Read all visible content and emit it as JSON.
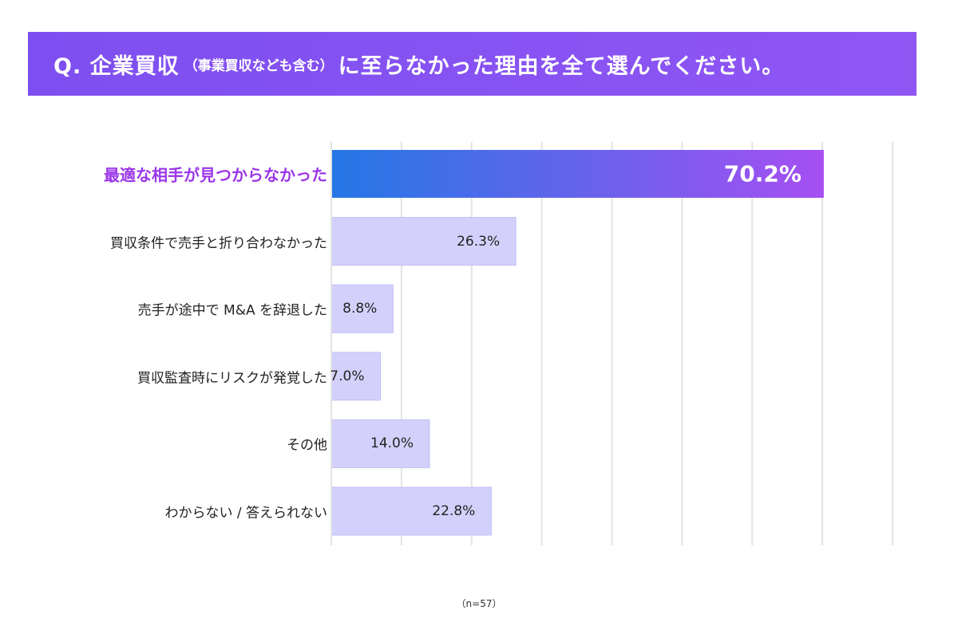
{
  "question": {
    "main_prefix": "Q. 企業買収",
    "sub": "（事業買収なども含む）",
    "main_suffix": "に至らなかった理由を全て選んでください。"
  },
  "note": "（n=57）",
  "colors": {
    "banner": "#8552f2",
    "highlight_bar_start": "#2477e6",
    "highlight_bar_end": "#a64ff2",
    "highlight_text": "#9b35e8",
    "bar_fill": "#d3d1fb",
    "bar_stroke": "#c2bff5",
    "gridline": "#e3e3e3"
  },
  "chart_data": {
    "type": "bar",
    "orientation": "horizontal",
    "unit": "%",
    "xlim": [
      0,
      80
    ],
    "grid": true,
    "categories": [
      "最適な相手が見つからなかった",
      "買収条件で売手と折り合わなかった",
      "売手が途中で M&A を辞退した",
      "買収監査時にリスクが発覚した",
      "その他",
      "わからない / 答えられない"
    ],
    "values": [
      70.2,
      26.3,
      8.8,
      7.0,
      14.0,
      22.8
    ],
    "value_labels": [
      "70.2%",
      "26.3%",
      "8.8%",
      "7.0%",
      "14.0%",
      "22.8%"
    ],
    "highlighted_index": 0
  }
}
